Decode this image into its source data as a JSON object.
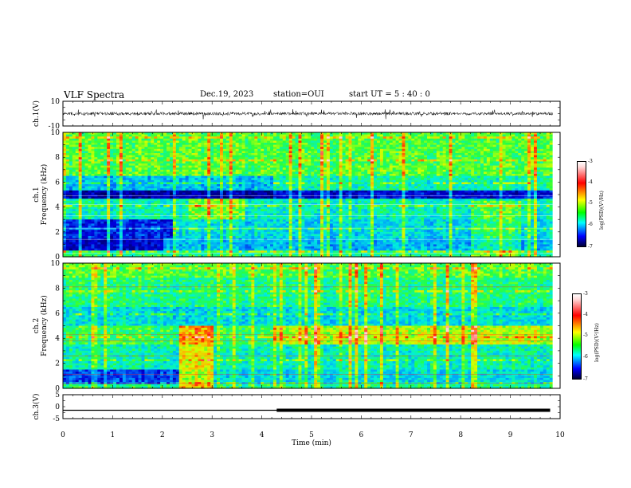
{
  "header": {
    "title": "VLF Spectra",
    "date": "Dec.19, 2023",
    "station": "station=OUI",
    "start": "start  UT =  5 : 40 : 0"
  },
  "chart_data": [
    {
      "type": "line",
      "panel": "ch1-waveform",
      "ylabel": "ch.1(V)",
      "ylim": [
        -10,
        10
      ],
      "yticks": [
        "10",
        "-10"
      ],
      "xlim": [
        0,
        10
      ],
      "description_values": {
        "baseline": 0,
        "amplitude_range": [
          -3,
          3
        ]
      }
    },
    {
      "type": "heatmap",
      "panel": "ch1-spectrogram",
      "ylabel": "ch.1\nFrequency (kHz)",
      "ylim": [
        0,
        10
      ],
      "yticks": [
        "0",
        "2",
        "4",
        "6",
        "8",
        "10"
      ],
      "xlim": [
        0,
        10
      ],
      "colorbar": {
        "ticks": [
          "-3",
          "-4",
          "-5",
          "-6",
          "-7"
        ],
        "label": "log(PSD)(V²/Hz)",
        "range": [
          -7,
          -3
        ]
      }
    },
    {
      "type": "heatmap",
      "panel": "ch2-spectrogram",
      "ylabel": "ch.2\nFrequency (kHz)",
      "ylim": [
        0,
        10
      ],
      "yticks": [
        "0",
        "2",
        "4",
        "6",
        "8",
        "10"
      ],
      "xlim": [
        0,
        10
      ],
      "colorbar": {
        "ticks": [
          "-3",
          "-4",
          "-5",
          "-6",
          "-7"
        ],
        "label": "log(PSD)(V²/Hz)",
        "range": [
          -7,
          -3
        ]
      }
    },
    {
      "type": "line",
      "panel": "ch3-signal",
      "ylabel": "ch.3(V)",
      "ylim": [
        -5,
        5
      ],
      "yticks": [
        "5",
        "0",
        "-5"
      ],
      "xlim": [
        0,
        10
      ],
      "x": [
        0,
        4.3,
        4.3,
        9.8
      ],
      "y": [
        -1.5,
        -1.5,
        -1.5,
        -1.5
      ],
      "xlabel": "Time  (min)",
      "xticks": [
        "0",
        "1",
        "2",
        "3",
        "4",
        "5",
        "6",
        "7",
        "8",
        "9",
        "10"
      ]
    }
  ],
  "colors": {
    "deep_blue": "#0000a0",
    "blue": "#0000ff",
    "cyan": "#00ffff",
    "green": "#00ff00",
    "yellow": "#ffff00",
    "red": "#ff0000"
  }
}
